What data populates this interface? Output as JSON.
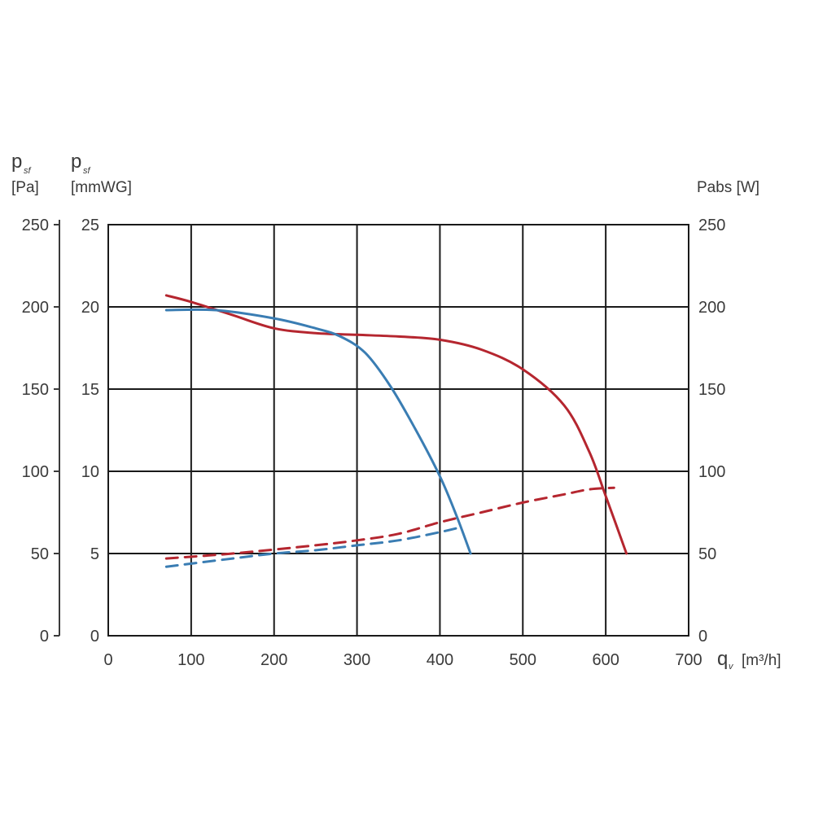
{
  "chart_data": {
    "type": "line",
    "title": "",
    "x": {
      "symbol": "q",
      "subscript": "v",
      "unit": "[m³/h]",
      "range": [
        0,
        700
      ],
      "ticks": [
        "0",
        "100",
        "200",
        "300",
        "400",
        "500",
        "600",
        "700"
      ]
    },
    "y_left_pa": {
      "symbol": "p",
      "subscript": "sf",
      "unit": "[Pa]",
      "range": [
        0,
        250
      ],
      "ticks": [
        "0",
        "50",
        "100",
        "150",
        "200",
        "250"
      ]
    },
    "y_left_mmwg": {
      "symbol": "p",
      "subscript": "sf",
      "unit": "[mmWG]",
      "range": [
        0,
        25
      ],
      "ticks": [
        "0",
        "5",
        "10",
        "15",
        "20",
        "25"
      ]
    },
    "y_right": {
      "label": "Pabs [W]",
      "range": [
        0,
        250
      ],
      "ticks": [
        "0",
        "50",
        "100",
        "150",
        "200",
        "250"
      ]
    },
    "grid": true,
    "series": [
      {
        "name": "pressure-red",
        "axis": "pa",
        "style": "solid",
        "color": "#b5262f",
        "points": [
          [
            70,
            207
          ],
          [
            100,
            203
          ],
          [
            150,
            195
          ],
          [
            200,
            187
          ],
          [
            250,
            184
          ],
          [
            300,
            183
          ],
          [
            350,
            182
          ],
          [
            400,
            180
          ],
          [
            450,
            174
          ],
          [
            500,
            162
          ],
          [
            550,
            140
          ],
          [
            580,
            112
          ],
          [
            600,
            85
          ],
          [
            625,
            50
          ]
        ]
      },
      {
        "name": "pressure-blue",
        "axis": "pa",
        "style": "solid",
        "color": "#3a7db3",
        "points": [
          [
            70,
            198
          ],
          [
            130,
            198
          ],
          [
            200,
            193
          ],
          [
            250,
            187
          ],
          [
            280,
            182
          ],
          [
            310,
            172
          ],
          [
            340,
            152
          ],
          [
            370,
            126
          ],
          [
            400,
            97
          ],
          [
            420,
            73
          ],
          [
            437,
            50
          ]
        ]
      },
      {
        "name": "power-red",
        "axis": "w",
        "style": "dashed",
        "color": "#b5262f",
        "points": [
          [
            70,
            47
          ],
          [
            150,
            50
          ],
          [
            250,
            55
          ],
          [
            300,
            58
          ],
          [
            350,
            62
          ],
          [
            400,
            69
          ],
          [
            450,
            75
          ],
          [
            500,
            81
          ],
          [
            550,
            86
          ],
          [
            580,
            89
          ],
          [
            610,
            90
          ]
        ]
      },
      {
        "name": "power-blue",
        "axis": "w",
        "style": "dashed",
        "color": "#3a7db3",
        "points": [
          [
            70,
            42
          ],
          [
            150,
            47
          ],
          [
            200,
            50
          ],
          [
            250,
            52
          ],
          [
            300,
            55
          ],
          [
            350,
            58
          ],
          [
            400,
            63
          ],
          [
            425,
            66
          ]
        ]
      }
    ]
  }
}
